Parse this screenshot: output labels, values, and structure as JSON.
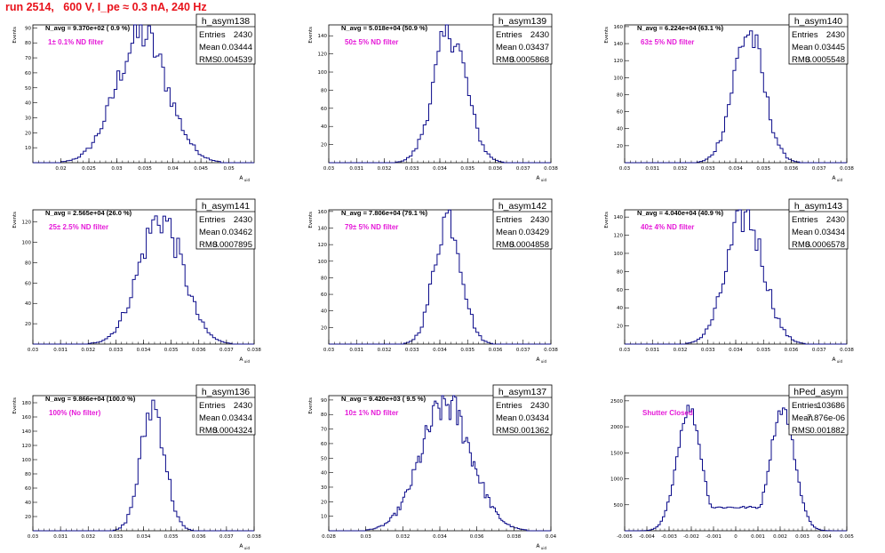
{
  "header": {
    "title": "run 2514,   600 V, I_pe ≈ 0.3 nA, 240 Hz"
  },
  "chart_data": [
    {
      "type": "histogram",
      "name": "h_asym138",
      "ylabel": "Events",
      "xlabel": "A_uid",
      "xlim": [
        0.015,
        0.0545
      ],
      "ylim": [
        0,
        92
      ],
      "xticks": [
        "0.02",
        "0.025",
        "0.03",
        "0.035",
        "0.04",
        "0.045",
        "0.05"
      ],
      "xtick_values": [
        0.02,
        0.025,
        0.03,
        0.035,
        0.04,
        0.045,
        0.05
      ],
      "yticks": [
        10,
        20,
        30,
        40,
        50,
        60,
        70,
        80,
        90
      ],
      "stats": [
        [
          "Entries",
          "2430"
        ],
        [
          "Mean",
          "0.03444"
        ],
        [
          "RMS",
          "0.004539"
        ]
      ],
      "navg": "N_avg = 9.370e+02 ( 0.9 %)",
      "filter_label": "1± 0.1% ND filter",
      "dist": {
        "mean": 0.03444,
        "rms": 0.004539,
        "bin": 0.0005,
        "peak": 88
      }
    },
    {
      "type": "histogram",
      "name": "h_asym139",
      "ylabel": "Events",
      "xlabel": "A_uid",
      "xlim": [
        0.03,
        0.038
      ],
      "ylim": [
        0,
        152
      ],
      "xticks": [
        "0.03",
        "0.031",
        "0.032",
        "0.033",
        "0.034",
        "0.035",
        "0.036",
        "0.037",
        "0.038"
      ],
      "xtick_values": [
        0.03,
        0.031,
        0.032,
        0.033,
        0.034,
        0.035,
        0.036,
        0.037,
        0.038
      ],
      "yticks": [
        20,
        40,
        60,
        80,
        100,
        120,
        140
      ],
      "stats": [
        [
          "Entries",
          "2430"
        ],
        [
          "Mean",
          "0.03437"
        ],
        [
          "RMS",
          "0.0005868"
        ]
      ],
      "navg": "N_avg = 5.018e+04 (50.9 %)",
      "filter_label": "50± 5% ND filter",
      "dist": {
        "mean": 0.03437,
        "rms": 0.0005868,
        "bin": 0.0001,
        "peak": 150
      }
    },
    {
      "type": "histogram",
      "name": "h_asym140",
      "ylabel": "Events",
      "xlabel": "A_uid",
      "xlim": [
        0.03,
        0.038
      ],
      "ylim": [
        0,
        162
      ],
      "xticks": [
        "0.03",
        "0.031",
        "0.032",
        "0.033",
        "0.034",
        "0.035",
        "0.036",
        "0.037",
        "0.038"
      ],
      "xtick_values": [
        0.03,
        0.031,
        0.032,
        0.033,
        0.034,
        0.035,
        0.036,
        0.037,
        0.038
      ],
      "yticks": [
        20,
        40,
        60,
        80,
        100,
        120,
        140,
        160
      ],
      "stats": [
        [
          "Entries",
          "2430"
        ],
        [
          "Mean",
          "0.03445"
        ],
        [
          "RMS",
          "0.0005548"
        ]
      ],
      "navg": "N_avg = 6.224e+04 (63.1 %)",
      "filter_label": "63± 5% ND filter",
      "dist": {
        "mean": 0.03445,
        "rms": 0.0005548,
        "bin": 0.0001,
        "peak": 158
      }
    },
    {
      "type": "histogram",
      "name": "h_asym141",
      "ylabel": "Events",
      "xlabel": "A_uid",
      "xlim": [
        0.03,
        0.038
      ],
      "ylim": [
        0,
        132
      ],
      "xticks": [
        "0.03",
        "0.031",
        "0.032",
        "0.033",
        "0.034",
        "0.035",
        "0.036",
        "0.037",
        "0.038"
      ],
      "xtick_values": [
        0.03,
        0.031,
        0.032,
        0.033,
        0.034,
        0.035,
        0.036,
        0.037,
        0.038
      ],
      "yticks": [
        20,
        40,
        60,
        80,
        100,
        120
      ],
      "stats": [
        [
          "Entries",
          "2430"
        ],
        [
          "Mean",
          "0.03462"
        ],
        [
          "RMS",
          "0.0007895"
        ]
      ],
      "navg": "N_avg = 2.565e+04 (26.0 %)",
      "filter_label": "25± 2.5% ND filter",
      "dist": {
        "mean": 0.03462,
        "rms": 0.0007895,
        "bin": 0.0001,
        "peak": 128
      }
    },
    {
      "type": "histogram",
      "name": "h_asym142",
      "ylabel": "Events",
      "xlabel": "A_uid",
      "xlim": [
        0.03,
        0.038
      ],
      "ylim": [
        0,
        162
      ],
      "xticks": [
        "0.03",
        "0.031",
        "0.032",
        "0.033",
        "0.034",
        "0.035",
        "0.036",
        "0.037",
        "0.038"
      ],
      "xtick_values": [
        0.03,
        0.031,
        0.032,
        0.033,
        0.034,
        0.035,
        0.036,
        0.037,
        0.038
      ],
      "yticks": [
        20,
        40,
        60,
        80,
        100,
        120,
        140,
        160
      ],
      "stats": [
        [
          "Entries",
          "2430"
        ],
        [
          "Mean",
          "0.03429"
        ],
        [
          "RMS",
          "0.0004858"
        ]
      ],
      "navg": "N_avg = 7.806e+04 (79.1 %)",
      "filter_label": "79± 5% ND filter",
      "dist": {
        "mean": 0.03429,
        "rms": 0.0004858,
        "bin": 0.0001,
        "peak": 160
      }
    },
    {
      "type": "histogram",
      "name": "h_asym143",
      "ylabel": "Events",
      "xlabel": "A_uid",
      "xlim": [
        0.03,
        0.038
      ],
      "ylim": [
        0,
        148
      ],
      "xticks": [
        "0.03",
        "0.031",
        "0.032",
        "0.033",
        "0.034",
        "0.035",
        "0.036",
        "0.037",
        "0.038"
      ],
      "xtick_values": [
        0.03,
        0.031,
        0.032,
        0.033,
        0.034,
        0.035,
        0.036,
        0.037,
        0.038
      ],
      "yticks": [
        20,
        40,
        60,
        80,
        100,
        120,
        140
      ],
      "stats": [
        [
          "Entries",
          "2430"
        ],
        [
          "Mean",
          "0.03434"
        ],
        [
          "RMS",
          "0.0006578"
        ]
      ],
      "navg": "N_avg = 4.040e+04 (40.9 %)",
      "filter_label": "40± 4% ND filter",
      "dist": {
        "mean": 0.03434,
        "rms": 0.0006578,
        "bin": 0.0001,
        "peak": 146
      }
    },
    {
      "type": "histogram",
      "name": "h_asym136",
      "ylabel": "Events",
      "xlabel": "A_uid",
      "xlim": [
        0.03,
        0.038
      ],
      "ylim": [
        0,
        190
      ],
      "xticks": [
        "0.03",
        "0.031",
        "0.032",
        "0.033",
        "0.034",
        "0.035",
        "0.036",
        "0.037",
        "0.038"
      ],
      "xtick_values": [
        0.03,
        0.031,
        0.032,
        0.033,
        0.034,
        0.035,
        0.036,
        0.037,
        0.038
      ],
      "yticks": [
        20,
        40,
        60,
        80,
        100,
        120,
        140,
        160,
        180
      ],
      "stats": [
        [
          "Entries",
          "2430"
        ],
        [
          "Mean",
          "0.03434"
        ],
        [
          "RMS",
          "0.0004324"
        ]
      ],
      "navg": "N_avg = 9.866e+04 (100.0 %)",
      "filter_label": "100% (No filter)",
      "dist": {
        "mean": 0.03434,
        "rms": 0.0004324,
        "bin": 0.0001,
        "peak": 182
      }
    },
    {
      "type": "histogram",
      "name": "h_asym137",
      "ylabel": "Events",
      "xlabel": "A_uid",
      "xlim": [
        0.028,
        0.04
      ],
      "ylim": [
        0,
        93
      ],
      "xticks": [
        "0.028",
        "0.03",
        "0.032",
        "0.034",
        "0.036",
        "0.038",
        "0.04"
      ],
      "xtick_values": [
        0.028,
        0.03,
        0.032,
        0.034,
        0.036,
        0.038,
        0.04
      ],
      "yticks": [
        10,
        20,
        30,
        40,
        50,
        60,
        70,
        80,
        90
      ],
      "stats": [
        [
          "Entries",
          "2430"
        ],
        [
          "Mean",
          "0.03434"
        ],
        [
          "RMS",
          "0.001362"
        ]
      ],
      "navg": "N_avg = 9.420e+03 ( 9.5 %)",
      "filter_label": "10± 1% ND filter",
      "dist": {
        "mean": 0.03434,
        "rms": 0.001362,
        "bin": 0.0001,
        "peak": 90
      }
    },
    {
      "type": "histogram",
      "name": "hPed_asym",
      "ylabel": "",
      "xlabel": "",
      "xlim": [
        -0.005,
        0.005
      ],
      "ylim": [
        0,
        2600
      ],
      "xticks": [
        "-0.005",
        "-0.004",
        "-0.003",
        "-0.002",
        "-0.001",
        "0",
        "0.001",
        "0.002",
        "0.003",
        "0.004",
        "0.005"
      ],
      "xtick_values": [
        -0.005,
        -0.004,
        -0.003,
        -0.002,
        -0.001,
        0,
        0.001,
        0.002,
        0.003,
        0.004,
        0.005
      ],
      "yticks": [
        500,
        1000,
        1500,
        2000,
        2500
      ],
      "stats": [
        [
          "Entries",
          "103686"
        ],
        [
          "Mean",
          "7.876e-06"
        ],
        [
          "RMS",
          "0.001882"
        ]
      ],
      "navg": "",
      "filter_label": "Shutter Closed",
      "dist": {
        "type": "bimodal",
        "centers": [
          -0.0021,
          0.0021
        ],
        "sigma": 0.00055,
        "bin": 0.0001,
        "peak": 2400,
        "valley": 460
      }
    }
  ],
  "colors": {
    "histogram": "#0b0b8a",
    "annotation": "#e519d8",
    "title": "#e8111a",
    "axis": "#000000"
  }
}
